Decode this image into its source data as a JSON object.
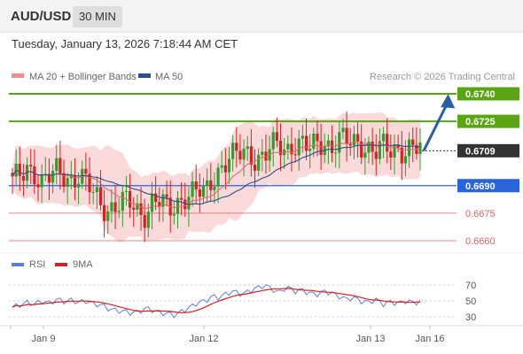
{
  "header": {
    "pair": "AUD/USD",
    "timeframe": "30 MIN"
  },
  "datetime": "Tuesday, January 13, 2026 7:18:44 AM CET",
  "legend": {
    "ma20": "MA 20 + Bollinger Bands",
    "ma50": "MA 50"
  },
  "credit": "Research © 2026 Trading Central",
  "rsi_legend": {
    "rsi": "RSI",
    "ma": "9MA"
  },
  "colors": {
    "up": "#2f9e2f",
    "down": "#d72020",
    "resistance": "#5aa514",
    "support_blue": "#2864dc",
    "support_red": "#e06060",
    "ma50": "#2d4f87",
    "band": "#f6c4c4",
    "ma20": "#f06060",
    "arrow": "#2a5fa3",
    "current": "#333333"
  },
  "chart_data": [
    {
      "type": "candlestick",
      "title": "AUD/USD 30 MIN",
      "x_ticks": [
        "Jan 9",
        "Jan 12",
        "Jan 13",
        "Jan 16"
      ],
      "ylim": [
        0.6645,
        0.675
      ],
      "current_price": 0.6709,
      "levels": [
        {
          "value": 0.674,
          "label": "0.6740",
          "kind": "resistance"
        },
        {
          "value": 0.6725,
          "label": "0.6725",
          "kind": "resistance"
        },
        {
          "value": 0.669,
          "label": "0.6690",
          "kind": "pivot"
        },
        {
          "value": 0.6675,
          "label": "0.6675",
          "kind": "support"
        },
        {
          "value": 0.666,
          "label": "0.6660",
          "kind": "support"
        }
      ],
      "current_label": "0.6709",
      "projected_target": 0.674,
      "close_path": [
        0.6692,
        0.6694,
        0.67,
        0.6698,
        0.6692,
        0.6694,
        0.6697,
        0.6696,
        0.6694,
        0.6696,
        0.669,
        0.6685,
        0.668,
        0.6678,
        0.6679,
        0.668,
        0.668,
        0.6676,
        0.6676,
        0.6682,
        0.668,
        0.6676,
        0.668,
        0.6685,
        0.6685,
        0.6686,
        0.6685,
        0.6695,
        0.67,
        0.6704,
        0.6705,
        0.6708,
        0.6708,
        0.6705,
        0.6706,
        0.671,
        0.6712,
        0.671,
        0.6714,
        0.6712,
        0.6709,
        0.6712,
        0.6715,
        0.6711,
        0.6715,
        0.6713,
        0.6713,
        0.6714,
        0.6711,
        0.6708,
        0.671,
        0.6709,
        0.6711,
        0.671,
        0.671,
        0.6709
      ],
      "series": [
        {
          "name": "MA 20 + Bollinger Bands"
        },
        {
          "name": "MA 50"
        }
      ]
    },
    {
      "type": "line",
      "title": "RSI",
      "y_ticks": [
        70,
        50,
        30
      ],
      "ylim": [
        20,
        80
      ],
      "rsi_path": [
        42,
        45,
        48,
        46,
        50,
        47,
        52,
        49,
        51,
        48,
        50,
        46,
        45,
        40,
        38,
        37,
        35,
        36,
        41,
        38,
        35,
        34,
        32,
        38,
        42,
        48,
        50,
        56,
        54,
        60,
        62,
        58,
        63,
        66,
        70,
        65,
        60,
        68,
        62,
        64,
        60,
        58,
        62,
        60,
        56,
        52,
        54,
        50,
        48,
        52,
        46,
        49,
        47,
        50,
        48,
        49
      ],
      "series": [
        {
          "name": "RSI"
        },
        {
          "name": "9MA"
        }
      ]
    }
  ]
}
